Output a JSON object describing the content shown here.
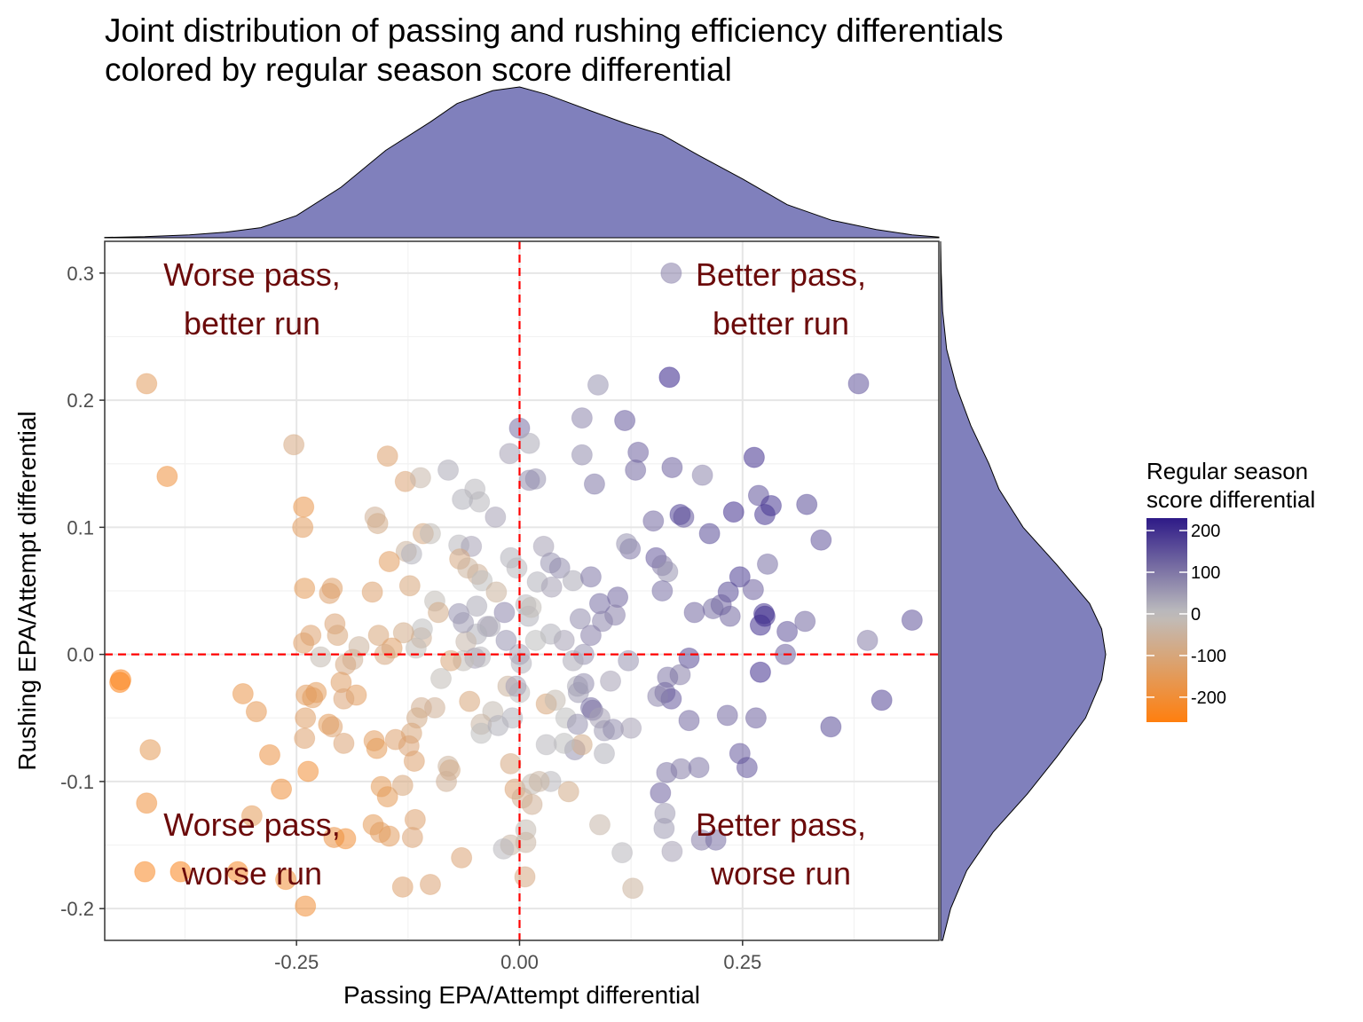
{
  "chart_data": {
    "type": "scatter",
    "title": [
      "Joint distribution of passing and rushing efficiency differentials",
      "colored by regular season score differential"
    ],
    "xlabel": "Passing EPA/Attempt differential",
    "ylabel": "Rushing EPA/Attempt differential",
    "xlim": [
      -0.465,
      0.47
    ],
    "ylim": [
      -0.225,
      0.325
    ],
    "x_ticks": [
      -0.25,
      0.0,
      0.25
    ],
    "x_tick_labels": [
      "-0.25",
      "0.00",
      "0.25"
    ],
    "y_ticks": [
      -0.2,
      -0.1,
      0.0,
      0.1,
      0.2,
      0.3
    ],
    "y_tick_labels": [
      "-0.2",
      "-0.1",
      "0.0",
      "0.1",
      "0.2",
      "0.3"
    ],
    "grid": true,
    "reference_lines": {
      "x": 0,
      "y": 0,
      "color": "#ff0000",
      "style": "dashed"
    },
    "quadrant_labels": [
      {
        "lines": [
          "Worse pass,",
          "better run"
        ],
        "position": "top-left"
      },
      {
        "lines": [
          "Better pass,",
          "better run"
        ],
        "position": "top-right"
      },
      {
        "lines": [
          "Worse pass,",
          "worse run"
        ],
        "position": "bottom-left"
      },
      {
        "lines": [
          "Better pass,",
          "worse run"
        ],
        "position": "bottom-right"
      }
    ],
    "quadrant_label_color": "#6b0a0a",
    "legend": {
      "title": [
        "Regular season",
        "score differential"
      ],
      "ticks": [
        200,
        100,
        0,
        -100,
        -200
      ],
      "range": [
        -260,
        230
      ],
      "colors": {
        "low": "#ff7f0e",
        "mid": "#bebebe",
        "high": "#2e1a87"
      },
      "position": "right"
    },
    "marginal_color": "#8080bc",
    "x_density": [
      [
        -0.465,
        0.002
      ],
      [
        -0.42,
        0.006
      ],
      [
        -0.37,
        0.016
      ],
      [
        -0.33,
        0.03
      ],
      [
        -0.29,
        0.055
      ],
      [
        -0.25,
        0.12
      ],
      [
        -0.2,
        0.275
      ],
      [
        -0.15,
        0.475
      ],
      [
        -0.1,
        0.63
      ],
      [
        -0.07,
        0.73
      ],
      [
        -0.03,
        0.8
      ],
      [
        0.0,
        0.82
      ],
      [
        0.03,
        0.78
      ],
      [
        0.08,
        0.69
      ],
      [
        0.12,
        0.62
      ],
      [
        0.16,
        0.56
      ],
      [
        0.2,
        0.45
      ],
      [
        0.25,
        0.32
      ],
      [
        0.3,
        0.18
      ],
      [
        0.35,
        0.095
      ],
      [
        0.4,
        0.045
      ],
      [
        0.44,
        0.016
      ],
      [
        0.47,
        0.004
      ]
    ],
    "y_density": [
      [
        -0.225,
        0.01
      ],
      [
        -0.2,
        0.05
      ],
      [
        -0.17,
        0.13
      ],
      [
        -0.14,
        0.26
      ],
      [
        -0.11,
        0.43
      ],
      [
        -0.08,
        0.58
      ],
      [
        -0.05,
        0.72
      ],
      [
        -0.02,
        0.8
      ],
      [
        0.0,
        0.82
      ],
      [
        0.02,
        0.8
      ],
      [
        0.04,
        0.74
      ],
      [
        0.07,
        0.58
      ],
      [
        0.1,
        0.41
      ],
      [
        0.13,
        0.29
      ],
      [
        0.15,
        0.24
      ],
      [
        0.18,
        0.15
      ],
      [
        0.21,
        0.08
      ],
      [
        0.24,
        0.03
      ],
      [
        0.27,
        0.01
      ],
      [
        0.3,
        0.003
      ],
      [
        0.325,
        0.0
      ]
    ],
    "points": [
      [
        -0.418,
        0.213,
        -140
      ],
      [
        -0.395,
        0.14,
        -190
      ],
      [
        -0.253,
        0.165,
        -90
      ],
      [
        -0.148,
        0.156,
        -120
      ],
      [
        -0.128,
        0.136,
        -110
      ],
      [
        -0.111,
        0.139,
        -30
      ],
      [
        -0.08,
        0.145,
        30
      ],
      [
        -0.045,
        0.12,
        10
      ],
      [
        -0.064,
        0.122,
        20
      ],
      [
        -0.011,
        0.158,
        40
      ],
      [
        0.0,
        0.178,
        110
      ],
      [
        0.011,
        0.166,
        30
      ],
      [
        0.018,
        0.138,
        60
      ],
      [
        0.011,
        0.137,
        70
      ],
      [
        -0.05,
        0.13,
        10
      ],
      [
        -0.027,
        0.108,
        40
      ],
      [
        0.07,
        0.186,
        80
      ],
      [
        0.118,
        0.184,
        140
      ],
      [
        0.088,
        0.212,
        60
      ],
      [
        0.168,
        0.218,
        220
      ],
      [
        0.38,
        0.213,
        150
      ],
      [
        0.07,
        0.157,
        70
      ],
      [
        0.084,
        0.134,
        100
      ],
      [
        0.133,
        0.159,
        130
      ],
      [
        0.13,
        0.145,
        120
      ],
      [
        0.171,
        0.147,
        130
      ],
      [
        0.205,
        0.141,
        80
      ],
      [
        0.263,
        0.155,
        200
      ],
      [
        -0.242,
        0.116,
        -170
      ],
      [
        -0.243,
        0.1,
        -140
      ],
      [
        -0.162,
        0.108,
        -60
      ],
      [
        -0.159,
        0.103,
        -80
      ],
      [
        -0.108,
        0.095,
        -90
      ],
      [
        -0.127,
        0.081,
        -50
      ],
      [
        -0.121,
        0.079,
        20
      ],
      [
        -0.1,
        0.095,
        -10
      ],
      [
        -0.068,
        0.086,
        10
      ],
      [
        -0.054,
        0.085,
        40
      ],
      [
        -0.067,
        0.075,
        -90
      ],
      [
        -0.047,
        0.063,
        -60
      ],
      [
        -0.058,
        0.068,
        -50
      ],
      [
        -0.042,
        0.058,
        0
      ],
      [
        -0.146,
        0.073,
        -140
      ],
      [
        -0.165,
        0.049,
        -120
      ],
      [
        -0.123,
        0.054,
        -100
      ],
      [
        -0.241,
        0.052,
        -150
      ],
      [
        -0.21,
        0.052,
        -130
      ],
      [
        -0.213,
        0.048,
        -120
      ],
      [
        -0.207,
        0.024,
        -110
      ],
      [
        -0.095,
        0.042,
        -10
      ],
      [
        -0.091,
        0.033,
        -80
      ],
      [
        -0.068,
        0.032,
        60
      ],
      [
        -0.026,
        0.049,
        -50
      ],
      [
        -0.048,
        0.038,
        30
      ],
      [
        -0.036,
        0.022,
        40
      ],
      [
        -0.01,
        0.076,
        20
      ],
      [
        -0.003,
        0.068,
        10
      ],
      [
        0.027,
        0.085,
        40
      ],
      [
        0.035,
        0.072,
        60
      ],
      [
        0.045,
        0.068,
        70
      ],
      [
        0.02,
        0.057,
        20
      ],
      [
        0.036,
        0.053,
        40
      ],
      [
        0.06,
        0.058,
        30
      ],
      [
        0.08,
        0.061,
        100
      ],
      [
        0.124,
        0.083,
        100
      ],
      [
        0.12,
        0.087,
        60
      ],
      [
        0.153,
        0.076,
        140
      ],
      [
        0.16,
        0.07,
        90
      ],
      [
        0.166,
        0.065,
        60
      ],
      [
        0.16,
        0.05,
        110
      ],
      [
        0.18,
        0.11,
        180
      ],
      [
        0.184,
        0.108,
        150
      ],
      [
        0.213,
        0.095,
        160
      ],
      [
        0.15,
        0.105,
        120
      ],
      [
        0.24,
        0.112,
        200
      ],
      [
        0.268,
        0.125,
        150
      ],
      [
        0.275,
        0.11,
        190
      ],
      [
        0.282,
        0.117,
        190
      ],
      [
        0.322,
        0.118,
        160
      ],
      [
        0.338,
        0.09,
        150
      ],
      [
        0.278,
        0.071,
        110
      ],
      [
        0.247,
        0.061,
        180
      ],
      [
        0.262,
        0.051,
        130
      ],
      [
        0.234,
        0.049,
        160
      ],
      [
        0.226,
        0.039,
        130
      ],
      [
        0.217,
        0.036,
        110
      ],
      [
        0.196,
        0.033,
        120
      ],
      [
        0.236,
        0.03,
        120
      ],
      [
        0.274,
        0.032,
        190
      ],
      [
        0.275,
        0.03,
        200
      ],
      [
        0.27,
        0.023,
        200
      ],
      [
        0.32,
        0.026,
        120
      ],
      [
        0.3,
        0.018,
        150
      ],
      [
        0.298,
        0.0,
        130
      ],
      [
        0.39,
        0.011,
        90
      ],
      [
        0.44,
        0.027,
        150
      ],
      [
        0.406,
        -0.036,
        170
      ],
      [
        0.349,
        -0.057,
        160
      ],
      [
        0.27,
        -0.014,
        200
      ],
      [
        0.265,
        -0.05,
        130
      ],
      [
        0.233,
        -0.048,
        120
      ],
      [
        0.19,
        -0.003,
        160
      ],
      [
        0.18,
        -0.016,
        90
      ],
      [
        0.19,
        -0.052,
        120
      ],
      [
        0.166,
        -0.018,
        100
      ],
      [
        0.163,
        -0.03,
        120
      ],
      [
        0.17,
        -0.035,
        140
      ],
      [
        0.155,
        -0.033,
        80
      ],
      [
        0.165,
        -0.093,
        100
      ],
      [
        0.181,
        -0.09,
        90
      ],
      [
        0.201,
        -0.089,
        100
      ],
      [
        0.247,
        -0.078,
        140
      ],
      [
        0.255,
        -0.089,
        150
      ],
      [
        0.158,
        -0.109,
        130
      ],
      [
        0.163,
        -0.125,
        50
      ],
      [
        0.162,
        -0.137,
        50
      ],
      [
        0.171,
        -0.155,
        40
      ],
      [
        0.204,
        -0.146,
        90
      ],
      [
        0.22,
        -0.146,
        110
      ],
      [
        0.11,
        0.045,
        120
      ],
      [
        0.107,
        0.031,
        90
      ],
      [
        0.09,
        0.04,
        110
      ],
      [
        0.093,
        0.026,
        80
      ],
      [
        0.08,
        0.015,
        90
      ],
      [
        0.068,
        0.028,
        70
      ],
      [
        0.072,
        0.0,
        60
      ],
      [
        0.06,
        -0.005,
        30
      ],
      [
        0.05,
        0.011,
        40
      ],
      [
        0.035,
        0.016,
        20
      ],
      [
        0.018,
        0.011,
        0
      ],
      [
        0.01,
        0.03,
        20
      ],
      [
        0.007,
        0.039,
        10
      ],
      [
        0.013,
        0.037,
        -10
      ],
      [
        -0.017,
        0.033,
        80
      ],
      [
        -0.015,
        0.011,
        60
      ],
      [
        -0.033,
        0.022,
        30
      ],
      [
        -0.048,
        0.016,
        20
      ],
      [
        -0.06,
        0.01,
        -30
      ],
      [
        -0.063,
        0.025,
        50
      ],
      [
        -0.05,
        -0.003,
        40
      ],
      [
        -0.044,
        -0.002,
        10
      ],
      [
        -0.063,
        -0.005,
        -10
      ],
      [
        -0.077,
        -0.005,
        -100
      ],
      [
        -0.088,
        -0.019,
        -10
      ],
      [
        -0.11,
        0.013,
        -60
      ],
      [
        -0.109,
        0.02,
        0
      ],
      [
        -0.116,
        0.005,
        -10
      ],
      [
        -0.13,
        0.017,
        -80
      ],
      [
        -0.158,
        0.015,
        -100
      ],
      [
        -0.143,
        0.005,
        -130
      ],
      [
        -0.151,
        0.0,
        -90
      ],
      [
        -0.18,
        0.006,
        -50
      ],
      [
        -0.187,
        -0.004,
        -60
      ],
      [
        -0.195,
        -0.008,
        -90
      ],
      [
        -0.223,
        -0.002,
        -20
      ],
      [
        -0.242,
        0.009,
        -130
      ],
      [
        -0.234,
        0.015,
        -120
      ],
      [
        -0.204,
        0.015,
        -100
      ],
      [
        -0.013,
        -0.025,
        -50
      ],
      [
        0.002,
        -0.007,
        20
      ],
      [
        0.0,
        -0.03,
        0
      ],
      [
        -0.004,
        -0.025,
        40
      ],
      [
        0.03,
        -0.039,
        -100
      ],
      [
        0.04,
        -0.036,
        -20
      ],
      [
        0.052,
        -0.05,
        0
      ],
      [
        0.065,
        -0.025,
        30
      ],
      [
        0.072,
        -0.023,
        70
      ],
      [
        0.066,
        -0.03,
        50
      ],
      [
        0.065,
        -0.055,
        60
      ],
      [
        0.08,
        -0.042,
        110
      ],
      [
        0.082,
        -0.044,
        100
      ],
      [
        0.09,
        -0.05,
        40
      ],
      [
        0.095,
        -0.06,
        50
      ],
      [
        0.105,
        -0.059,
        70
      ],
      [
        0.125,
        -0.058,
        40
      ],
      [
        0.102,
        -0.021,
        40
      ],
      [
        0.122,
        -0.005,
        60
      ],
      [
        0.062,
        -0.075,
        60
      ],
      [
        0.07,
        -0.071,
        -80
      ],
      [
        0.05,
        -0.07,
        0
      ],
      [
        0.03,
        -0.071,
        10
      ],
      [
        0.095,
        -0.078,
        20
      ],
      [
        -0.095,
        -0.042,
        -60
      ],
      [
        -0.11,
        -0.042,
        -70
      ],
      [
        -0.115,
        -0.05,
        -80
      ],
      [
        -0.121,
        -0.062,
        -100
      ],
      [
        -0.124,
        -0.072,
        -110
      ],
      [
        -0.118,
        -0.084,
        -120
      ],
      [
        -0.139,
        -0.067,
        -120
      ],
      [
        -0.163,
        -0.068,
        -140
      ],
      [
        -0.16,
        -0.074,
        -150
      ],
      [
        -0.197,
        -0.07,
        -110
      ],
      [
        -0.228,
        -0.03,
        -150
      ],
      [
        -0.2,
        -0.022,
        -130
      ],
      [
        -0.183,
        -0.032,
        -140
      ],
      [
        -0.197,
        -0.035,
        -110
      ],
      [
        -0.214,
        -0.055,
        -150
      ],
      [
        -0.21,
        -0.057,
        -120
      ],
      [
        -0.239,
        -0.032,
        -140
      ],
      [
        -0.232,
        -0.034,
        -140
      ],
      [
        -0.24,
        -0.05,
        -130
      ],
      [
        -0.241,
        -0.066,
        -120
      ],
      [
        -0.237,
        -0.092,
        -200
      ],
      [
        -0.08,
        -0.088,
        -50
      ],
      [
        -0.078,
        -0.091,
        -80
      ],
      [
        -0.082,
        -0.1,
        -60
      ],
      [
        -0.056,
        -0.037,
        -100
      ],
      [
        -0.03,
        -0.045,
        -20
      ],
      [
        -0.043,
        -0.055,
        -40
      ],
      [
        -0.043,
        -0.062,
        0
      ],
      [
        -0.024,
        -0.056,
        20
      ],
      [
        -0.008,
        -0.05,
        20
      ],
      [
        -0.01,
        -0.086,
        -90
      ],
      [
        -0.005,
        -0.106,
        -110
      ],
      [
        0.003,
        -0.113,
        -70
      ],
      [
        0.014,
        -0.102,
        -20
      ],
      [
        0.035,
        -0.1,
        10
      ],
      [
        0.022,
        -0.1,
        -40
      ],
      [
        0.014,
        -0.118,
        -60
      ],
      [
        0.055,
        -0.108,
        -80
      ],
      [
        0.09,
        -0.134,
        -30
      ],
      [
        0.115,
        -0.156,
        10
      ],
      [
        0.127,
        -0.184,
        -50
      ],
      [
        0.007,
        -0.138,
        -20
      ],
      [
        0.007,
        -0.148,
        -40
      ],
      [
        -0.01,
        -0.15,
        -40
      ],
      [
        -0.018,
        -0.153,
        10
      ],
      [
        -0.065,
        -0.16,
        -110
      ],
      [
        -0.1,
        -0.181,
        -110
      ],
      [
        -0.131,
        -0.183,
        -120
      ],
      [
        -0.155,
        -0.104,
        -150
      ],
      [
        -0.148,
        -0.112,
        -150
      ],
      [
        -0.131,
        -0.103,
        -100
      ],
      [
        -0.117,
        -0.13,
        -120
      ],
      [
        -0.12,
        -0.144,
        -110
      ],
      [
        -0.164,
        -0.134,
        -150
      ],
      [
        -0.156,
        -0.14,
        -140
      ],
      [
        -0.146,
        -0.143,
        -140
      ],
      [
        -0.208,
        -0.144,
        -180
      ],
      [
        -0.195,
        -0.145,
        -200
      ],
      [
        -0.295,
        -0.045,
        -160
      ],
      [
        -0.31,
        -0.031,
        -170
      ],
      [
        -0.28,
        -0.079,
        -180
      ],
      [
        -0.267,
        -0.106,
        -190
      ],
      [
        -0.3,
        -0.127,
        -150
      ],
      [
        -0.42,
        -0.171,
        -230
      ],
      [
        -0.316,
        -0.171,
        -220
      ],
      [
        -0.262,
        -0.177,
        -200
      ],
      [
        -0.24,
        -0.198,
        -200
      ],
      [
        -0.448,
        -0.022,
        -250
      ],
      [
        -0.447,
        -0.02,
        -240
      ],
      [
        -0.414,
        -0.075,
        -150
      ],
      [
        -0.418,
        -0.117,
        -190
      ],
      [
        -0.38,
        -0.171,
        -240
      ],
      [
        0.006,
        -0.175,
        -90
      ],
      [
        0.17,
        0.3,
        90
      ],
      [
        0.0,
        0.0,
        40
      ]
    ]
  }
}
